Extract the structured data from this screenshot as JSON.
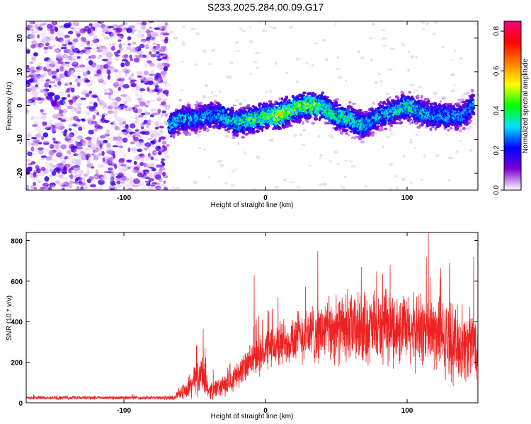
{
  "title": "S233.2025.284.00.09.G17",
  "chart_data": [
    {
      "type": "heatmap",
      "xlabel": "Height of straight line (km)",
      "ylabel": "Frequency (Hz)",
      "xlim": [
        -169,
        150
      ],
      "ylim": [
        -25,
        25
      ],
      "x_ticks": [
        -100,
        0,
        100
      ],
      "y_ticks": [
        -20,
        -10,
        0,
        10,
        20
      ],
      "grid": false,
      "colorbar": {
        "label": "Normalized spectral amplitude",
        "range": [
          0.0,
          0.85
        ],
        "ticks": [
          0.0,
          0.2,
          0.4,
          0.6,
          0.8
        ],
        "colormap": [
          "#ffffff",
          "#7b00d4",
          "#0000ff",
          "#00e0ff",
          "#00ff00",
          "#ffff00",
          "#ff8000",
          "#ff0000",
          "#ff0080"
        ]
      },
      "noise_region_x": [
        -169,
        -69
      ],
      "signal_track": {
        "x": [
          -68,
          -60,
          -50,
          -40,
          -30,
          -20,
          -10,
          0,
          10,
          20,
          30,
          40,
          50,
          60,
          70,
          80,
          90,
          100,
          110,
          120,
          130,
          140,
          147
        ],
        "frequency": [
          -6,
          -4,
          -4,
          -3,
          -3,
          -5,
          -4,
          -3,
          -3,
          -1,
          0,
          0,
          -3,
          -4,
          -6,
          -3,
          -2,
          0,
          -2,
          -3,
          -3,
          -3,
          1
        ],
        "peak_amplitude": [
          0.3,
          0.35,
          0.3,
          0.3,
          0.32,
          0.38,
          0.45,
          0.45,
          0.55,
          0.5,
          0.5,
          0.45,
          0.4,
          0.38,
          0.35,
          0.33,
          0.35,
          0.4,
          0.35,
          0.33,
          0.32,
          0.3,
          0.3
        ]
      }
    },
    {
      "type": "line",
      "xlabel": "Height of straight line (km)",
      "ylabel": "SNR (10 * v/v)",
      "xlim": [
        -169,
        150
      ],
      "ylim": [
        0,
        840
      ],
      "x_ticks": [
        -100,
        0,
        100
      ],
      "y_ticks": [
        0,
        200,
        400,
        600,
        800
      ],
      "grid": false,
      "color": "#ee2222",
      "envelope": {
        "x": [
          -169,
          -100,
          -65,
          -55,
          -50,
          -45,
          -40,
          -30,
          -20,
          -10,
          0,
          10,
          20,
          30,
          40,
          50,
          60,
          70,
          80,
          90,
          100,
          110,
          120,
          130,
          140,
          150
        ],
        "mean": [
          25,
          25,
          25,
          70,
          110,
          140,
          60,
          80,
          140,
          200,
          260,
          290,
          320,
          340,
          350,
          360,
          360,
          370,
          360,
          370,
          350,
          360,
          340,
          300,
          280,
          300
        ],
        "spread": [
          10,
          10,
          12,
          50,
          90,
          120,
          50,
          60,
          80,
          100,
          120,
          140,
          150,
          170,
          180,
          190,
          200,
          210,
          200,
          210,
          210,
          220,
          220,
          220,
          210,
          200
        ]
      },
      "spikes": [
        {
          "x": -44,
          "value": 365
        },
        {
          "x": -8,
          "value": 630
        },
        {
          "x": 58,
          "value": 560
        },
        {
          "x": 88,
          "value": 680
        },
        {
          "x": 115,
          "value": 840
        },
        {
          "x": 147,
          "value": 720
        }
      ]
    }
  ]
}
